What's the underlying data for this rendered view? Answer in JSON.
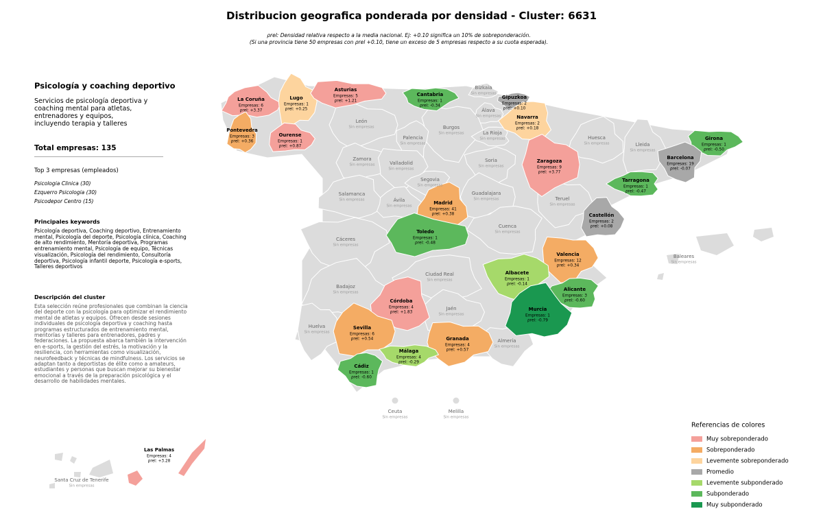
{
  "header": {
    "title": "Distribucion geografica ponderada por densidad - Cluster: 6631",
    "note_line1": "ρrel: Densidad relativa respecto a la media nacional. Ej: +0.10 significa un 10% de sobreponderación.",
    "note_line2": "(Si una provincia tiene 50 empresas con ρrel +0.10, tiene un exceso de 5 empresas respecto a su cuota esperada)."
  },
  "sidebar": {
    "cluster_name": "Psicología y coaching deportivo",
    "cluster_summary": "Servicios de psicología deportiva y coaching mental para atletas, entrenadores y equipos, incluyendo terapia y talleres",
    "total": "Total empresas: 135",
    "top_title": "Top 3 empresas (empleados)",
    "top": [
      "Psicologia Clinica (30)",
      "Ezquerro Psicologia (30)",
      "Psicodepor Centro (15)"
    ],
    "keywords_title": "Principales keywords",
    "keywords": "Psicología deportiva, Coaching deportivo, Entrenamiento mental, Psicología del deporte, Psicología clínica, Coaching de alto rendimiento, Mentoría deportiva, Programas entrenamiento mental, Psicología de equipo, Técnicas visualización, Psicología del rendimiento, Consultoría deportiva, Psicología infantil deporte, Psicología e-sports, Talleres deportivos",
    "description_title": "Descripción del cluster",
    "description": "Esta selección reúne profesionales que combinan la ciencia del deporte con la psicología para optimizar el rendimiento mental de atletas y equipos. Ofrecen desde sesiones individuales de psicología deportiva y coaching hasta programas estructurados de entrenamiento mental, mentorías y talleres para entrenadores, padres y federaciones. La propuesta abarca también la intervención en e-sports, la gestión del estrés, la motivación y la resiliencia, con herramientas como visualización, neurofeedback y técnicas de mindfulness. Los servicios se adaptan tanto a deportistas de élite como a amateurs, estudiantes y personas que buscan mejorar su bienestar emocional a través de la preparación psicológica y el desarrollo de habilidades mentales."
  },
  "provinces": [
    {
      "name": "La Coruña",
      "companies": "Empresas: 6",
      "density": "ρrel: +3.37",
      "color": "#f4a09a"
    },
    {
      "name": "Lugo",
      "companies": "Empresas: 1",
      "density": "ρrel: +0.25",
      "color": "#fdd49e"
    },
    {
      "name": "Asturias",
      "companies": "Empresas: 5",
      "density": "ρrel: +1.21",
      "color": "#f4a09a"
    },
    {
      "name": "Cantabria",
      "companies": "Empresas: 1",
      "density": "ρrel: -0.34",
      "color": "#5cb85c"
    },
    {
      "name": "Gipuzkoa",
      "companies": "Empresas: 2",
      "density": "ρrel: +0.10",
      "color": "#a8a8a8"
    },
    {
      "name": "Navarra",
      "companies": "Empresas: 2",
      "density": "ρrel: +0.18",
      "color": "#fdd49e"
    },
    {
      "name": "Pontevedra",
      "companies": "Empresas: 3",
      "density": "ρrel: +0.36",
      "color": "#f4ac64"
    },
    {
      "name": "Ourense",
      "companies": "Empresas: 1",
      "density": "ρrel: +0.87",
      "color": "#f4a09a"
    },
    {
      "name": "Zaragoza",
      "companies": "Empresas: 9",
      "density": "ρrel: +3.77",
      "color": "#f4a09a"
    },
    {
      "name": "Girona",
      "companies": "Empresas: 1",
      "density": "ρrel: -0.50",
      "color": "#5cb85c"
    },
    {
      "name": "Barcelona",
      "companies": "Empresas: 19",
      "density": "ρrel: -0.07",
      "color": "#a8a8a8"
    },
    {
      "name": "Tarragona",
      "companies": "Empresas: 1",
      "density": "ρrel: -0.47",
      "color": "#5cb85c"
    },
    {
      "name": "Madrid",
      "companies": "Empresas: 41",
      "density": "ρrel: +0.38",
      "color": "#f4ac64"
    },
    {
      "name": "Castellón",
      "companies": "Empresas: 2",
      "density": "ρrel: +0.08",
      "color": "#a8a8a8"
    },
    {
      "name": "Toledo",
      "companies": "Empresas: 1",
      "density": "ρrel: -0.48",
      "color": "#5cb85c"
    },
    {
      "name": "Valencia",
      "companies": "Empresas: 12",
      "density": "ρrel: +0.34",
      "color": "#f4ac64"
    },
    {
      "name": "Albacete",
      "companies": "Empresas: 1",
      "density": "ρrel: -0.14",
      "color": "#a6d96a"
    },
    {
      "name": "Alicante",
      "companies": "Empresas: 3",
      "density": "ρrel: -0.60",
      "color": "#5cb85c"
    },
    {
      "name": "Córdoba",
      "companies": "Empresas: 4",
      "density": "ρrel: +1.83",
      "color": "#f4a09a"
    },
    {
      "name": "Murcia",
      "companies": "Empresas: 1",
      "density": "ρrel: -0.79",
      "color": "#1a9850"
    },
    {
      "name": "Sevilla",
      "companies": "Empresas: 6",
      "density": "ρrel: +0.54",
      "color": "#f4ac64"
    },
    {
      "name": "Granada",
      "companies": "Empresas: 4",
      "density": "ρrel: +0.57",
      "color": "#f4ac64"
    },
    {
      "name": "Málaga",
      "companies": "Empresas: 4",
      "density": "ρrel: -0.29",
      "color": "#a6d96a"
    },
    {
      "name": "Cádiz",
      "companies": "Empresas: 1",
      "density": "ρrel: -0.60",
      "color": "#5cb85c"
    },
    {
      "name": "Las Palmas",
      "companies": "Empresas: 4",
      "density": "ρrel: +3.28",
      "color": "#f4a09a"
    },
    {
      "name": "Bizkaia",
      "status": "Sin empresas",
      "color": "#dcdcdc"
    },
    {
      "name": "Álava",
      "status": "Sin empresas",
      "color": "#dcdcdc"
    },
    {
      "name": "León",
      "status": "Sin empresas",
      "color": "#dcdcdc"
    },
    {
      "name": "Burgos",
      "status": "Sin empresas",
      "color": "#dcdcdc"
    },
    {
      "name": "Palencia",
      "status": "Sin empresas",
      "color": "#dcdcdc"
    },
    {
      "name": "La Rioja",
      "status": "Sin empresas",
      "color": "#dcdcdc"
    },
    {
      "name": "Huesca",
      "status": "Sin empresas",
      "color": "#dcdcdc"
    },
    {
      "name": "Lleida",
      "status": "Sin empresas",
      "color": "#dcdcdc"
    },
    {
      "name": "Zamora",
      "status": "Sin empresas",
      "color": "#dcdcdc"
    },
    {
      "name": "Valladolid",
      "status": "Sin empresas",
      "color": "#dcdcdc"
    },
    {
      "name": "Soria",
      "status": "Sin empresas",
      "color": "#dcdcdc"
    },
    {
      "name": "Segovia",
      "status": "Sin empresas",
      "color": "#dcdcdc"
    },
    {
      "name": "Salamanca",
      "status": "Sin empresas",
      "color": "#dcdcdc"
    },
    {
      "name": "Ávila",
      "status": "Sin empresas",
      "color": "#dcdcdc"
    },
    {
      "name": "Guadalajara",
      "status": "Sin empresas",
      "color": "#dcdcdc"
    },
    {
      "name": "Teruel",
      "status": "Sin empresas",
      "color": "#dcdcdc"
    },
    {
      "name": "Cáceres",
      "status": "Sin empresas",
      "color": "#dcdcdc"
    },
    {
      "name": "Cuenca",
      "status": "Sin empresas",
      "color": "#dcdcdc"
    },
    {
      "name": "Ciudad Real",
      "status": "Sin empresas",
      "color": "#dcdcdc"
    },
    {
      "name": "Badajoz",
      "status": "Sin empresas",
      "color": "#dcdcdc"
    },
    {
      "name": "Jaén",
      "status": "Sin empresas",
      "color": "#dcdcdc"
    },
    {
      "name": "Huelva",
      "status": "Sin empresas",
      "color": "#dcdcdc"
    },
    {
      "name": "Almería",
      "status": "Sin empresas",
      "color": "#dcdcdc"
    },
    {
      "name": "Baleares",
      "status": "Sin empresas",
      "color": "#dcdcdc"
    },
    {
      "name": "Ceuta",
      "status": "Sin empresas",
      "color": "#dcdcdc"
    },
    {
      "name": "Melilla",
      "status": "Sin empresas",
      "color": "#dcdcdc"
    },
    {
      "name": "Santa Cruz de Tenerife",
      "status": "Sin empresas",
      "color": "#dcdcdc"
    }
  ],
  "legend": {
    "title": "Referencias de colores",
    "items": [
      {
        "name": "Muy sobreponderado",
        "color": "#f4a09a"
      },
      {
        "name": "Sobreponderado",
        "color": "#f4ac64"
      },
      {
        "name": "Levemente sobreponderado",
        "color": "#fdd49e"
      },
      {
        "name": "Promedio",
        "color": "#a8a8a8"
      },
      {
        "name": "Levemente subponderado",
        "color": "#a6d96a"
      },
      {
        "name": "Subponderado",
        "color": "#5cb85c"
      },
      {
        "name": "Muy subponderado",
        "color": "#1a9850"
      }
    ]
  }
}
